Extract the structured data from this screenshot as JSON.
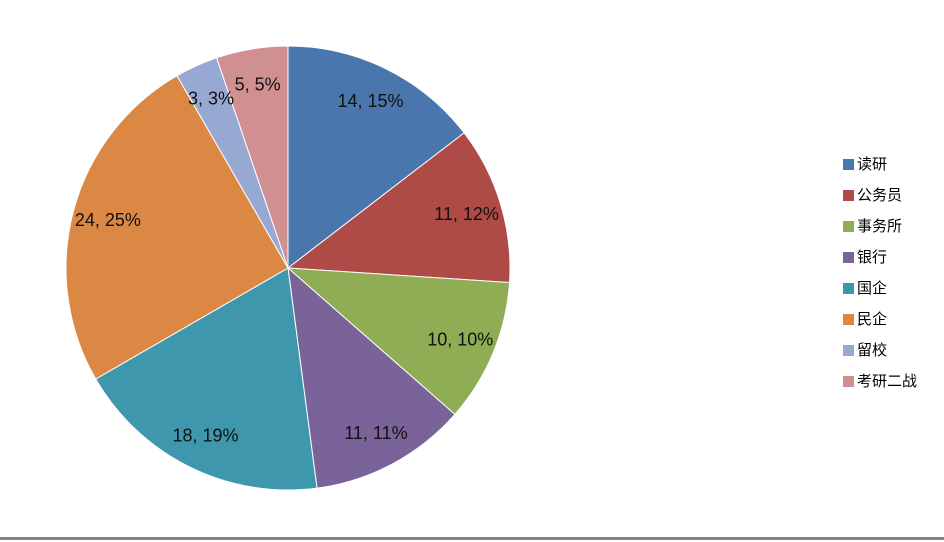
{
  "window": {
    "background_color": "#ffffff",
    "bottom_edge_color": "#848484"
  },
  "chart_data": {
    "type": "pie",
    "title": "",
    "categories": [
      "读研",
      "公务员",
      "事务所",
      "银行",
      "国企",
      "民企",
      "留校",
      "考研二战"
    ],
    "values": [
      14,
      11,
      10,
      11,
      18,
      24,
      3,
      5
    ],
    "total": 96,
    "data_labels": [
      "14, 15%",
      "11, 12%",
      "10, 10%",
      "11, 11%",
      "18, 19%",
      "24, 25%",
      "3, 3%",
      "5, 5%"
    ],
    "percent_labels": [
      "15%",
      "12%",
      "10%",
      "11%",
      "19%",
      "25%",
      "3%",
      "5%"
    ],
    "colors": [
      "#4A76AE",
      "#AF4B47",
      "#8EAD54",
      "#7A6399",
      "#3F97AE",
      "#DB8844",
      "#97A8D3",
      "#D09092"
    ],
    "label_format": "value, percent",
    "start_angle_deg": 0,
    "direction": "clockwise",
    "legend_position": "right",
    "grid": false
  }
}
